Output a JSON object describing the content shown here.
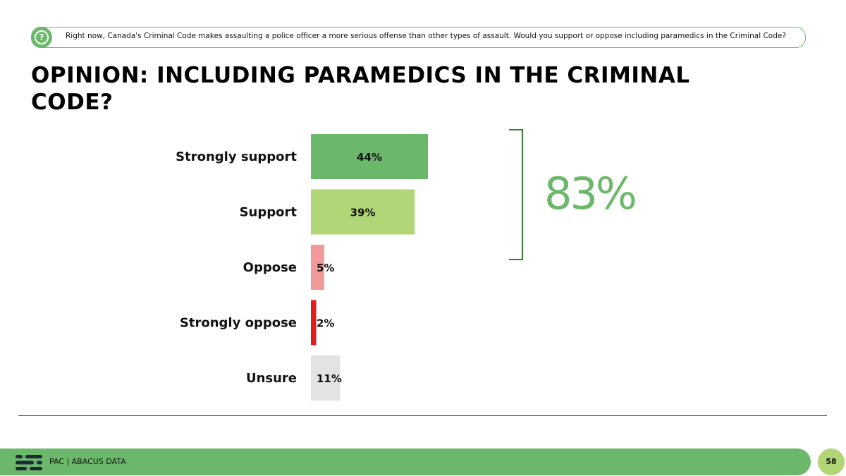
{
  "question": {
    "text": "Right now, Canada's  Criminal  Code  makes  assaulting  a  police  officer  a  more  serious  offense  than  other  types  of  assault.  Would  you  support  or  oppose  including  paramedics  in  the  Criminal  Code?",
    "icon": "question-mark-icon"
  },
  "title": "OPINION: INCLUDING PARAMEDICS IN THE CRIMINAL CODE?",
  "summary": {
    "value": "83%"
  },
  "footer": {
    "brand": "PAC | ABACUS DATA",
    "page": "58"
  },
  "chart_data": {
    "type": "bar",
    "orientation": "horizontal",
    "categories": [
      "Strongly support",
      "Support",
      "Oppose",
      "Strongly oppose",
      "Unsure"
    ],
    "values": [
      44,
      39,
      5,
      2,
      11
    ],
    "labels": [
      "44%",
      "39%",
      "5%",
      "2%",
      "11%"
    ],
    "colors": [
      "#6cb86a",
      "#b1d677",
      "#f29a9a",
      "#e01e1e",
      "#e3e3e3"
    ],
    "xlim": [
      0,
      100
    ],
    "grid": false
  }
}
